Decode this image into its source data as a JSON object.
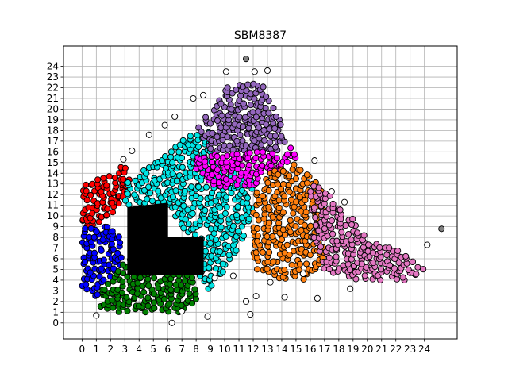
{
  "chart_data": {
    "type": "scatter",
    "title": "SBM8387",
    "xlabel": "",
    "ylabel": "",
    "xlim": [
      -1.3,
      26.3
    ],
    "ylim": [
      -1.5,
      25.9
    ],
    "xticks": [
      "0",
      "1",
      "2",
      "3",
      "4",
      "5",
      "6",
      "7",
      "8",
      "9",
      "10",
      "11",
      "12",
      "13",
      "14",
      "15",
      "16",
      "17",
      "18",
      "19",
      "20",
      "21",
      "22",
      "23",
      "24"
    ],
    "yticks": [
      "0",
      "1",
      "2",
      "3",
      "4",
      "5",
      "6",
      "7",
      "8",
      "9",
      "10",
      "11",
      "12",
      "13",
      "14",
      "15",
      "16",
      "17",
      "18",
      "19",
      "20",
      "21",
      "22",
      "23",
      "24"
    ],
    "grid": true,
    "marker_edge_color": "#000000",
    "series_colors": {
      "red": "#ff0000",
      "blue": "#0000ff",
      "green": "#008000",
      "black": "#000000",
      "cyan": "#00e5e5",
      "magenta": "#ff00ff",
      "purple": "#9467bd",
      "orange": "#ff7f0e",
      "pink": "#e377c2",
      "white": "#ffffff",
      "gray": "#808080"
    },
    "clusters": [
      {
        "color": "red",
        "polygon": [
          [
            0,
            9
          ],
          [
            0,
            13
          ],
          [
            1,
            13.5
          ],
          [
            2,
            14
          ],
          [
            3,
            15
          ],
          [
            3.5,
            14
          ],
          [
            3,
            12
          ],
          [
            2,
            10
          ],
          [
            1,
            9
          ]
        ],
        "density": 0.9
      },
      {
        "color": "blue",
        "polygon": [
          [
            0,
            3
          ],
          [
            0,
            9
          ],
          [
            2,
            9
          ],
          [
            3,
            8
          ],
          [
            3,
            6
          ],
          [
            2,
            4
          ],
          [
            1,
            2.5
          ]
        ],
        "density": 0.9
      },
      {
        "color": "green",
        "polygon": [
          [
            1,
            1
          ],
          [
            1,
            3
          ],
          [
            2,
            4
          ],
          [
            3,
            6
          ],
          [
            4,
            7
          ],
          [
            5,
            6
          ],
          [
            7,
            5
          ],
          [
            8,
            4
          ],
          [
            8,
            2
          ],
          [
            7,
            1
          ],
          [
            4,
            1
          ]
        ],
        "density": 0.9
      },
      {
        "color": "cyan",
        "polygon": [
          [
            3,
            11
          ],
          [
            3,
            13
          ],
          [
            5,
            15
          ],
          [
            6,
            16
          ],
          [
            7,
            17
          ],
          [
            8,
            18
          ],
          [
            9,
            18
          ],
          [
            9,
            16
          ],
          [
            10,
            14
          ],
          [
            12,
            14
          ],
          [
            12,
            10
          ],
          [
            11,
            7
          ],
          [
            10,
            5
          ],
          [
            9,
            3
          ],
          [
            8,
            4
          ],
          [
            8,
            7
          ],
          [
            7,
            9
          ],
          [
            6,
            11
          ],
          [
            4,
            11
          ]
        ],
        "density": 0.85
      },
      {
        "color": "purple",
        "polygon": [
          [
            8,
            18
          ],
          [
            9,
            20
          ],
          [
            10,
            22
          ],
          [
            12,
            22.5
          ],
          [
            13,
            22
          ],
          [
            13.5,
            20
          ],
          [
            14.5,
            17
          ],
          [
            14,
            16
          ],
          [
            12,
            16
          ],
          [
            10,
            16
          ],
          [
            9,
            16
          ]
        ],
        "density": 0.9
      },
      {
        "color": "magenta",
        "polygon": [
          [
            8,
            14
          ],
          [
            8,
            15.5
          ],
          [
            9,
            16
          ],
          [
            12,
            16
          ],
          [
            14,
            16
          ],
          [
            15,
            17
          ],
          [
            15,
            15
          ],
          [
            13,
            14
          ],
          [
            12,
            12.5
          ],
          [
            10,
            12.5
          ],
          [
            9,
            13
          ]
        ],
        "density": 0.9
      },
      {
        "color": "orange",
        "polygon": [
          [
            12,
            7
          ],
          [
            12,
            12
          ],
          [
            13,
            14
          ],
          [
            15,
            15
          ],
          [
            16,
            14
          ],
          [
            17,
            12
          ],
          [
            17,
            8
          ],
          [
            17,
            6
          ],
          [
            16,
            4
          ],
          [
            14,
            4
          ],
          [
            13,
            4.5
          ],
          [
            12,
            5
          ]
        ],
        "density": 0.8
      },
      {
        "color": "pink",
        "polygon": [
          [
            16,
            13
          ],
          [
            17,
            12.5
          ],
          [
            18,
            11
          ],
          [
            19,
            10
          ],
          [
            20,
            8
          ],
          [
            22,
            7
          ],
          [
            23,
            6
          ],
          [
            24,
            5
          ],
          [
            23,
            4
          ],
          [
            21,
            4
          ],
          [
            19,
            4
          ],
          [
            17,
            5
          ],
          [
            16,
            8
          ]
        ],
        "density": 0.85
      }
    ],
    "black_block": {
      "color": "black",
      "polygon": [
        [
          3.2,
          4.5
        ],
        [
          3.2,
          10.8
        ],
        [
          6,
          11.2
        ],
        [
          6,
          8
        ],
        [
          8.5,
          8
        ],
        [
          8.5,
          4.5
        ]
      ]
    },
    "outliers": [
      {
        "x": 11.5,
        "y": 24.7,
        "color": "gray"
      },
      {
        "x": 25.2,
        "y": 8.8,
        "color": "gray"
      },
      {
        "x": 1,
        "y": 0.7,
        "color": "white"
      },
      {
        "x": 6.3,
        "y": 0,
        "color": "white"
      },
      {
        "x": 7,
        "y": 1.1,
        "color": "white"
      },
      {
        "x": 8.8,
        "y": 0.6,
        "color": "white"
      },
      {
        "x": 11.8,
        "y": 0.8,
        "color": "white"
      },
      {
        "x": 11.5,
        "y": 2,
        "color": "white"
      },
      {
        "x": 12.2,
        "y": 2.5,
        "color": "white"
      },
      {
        "x": 14.2,
        "y": 2.4,
        "color": "white"
      },
      {
        "x": 16.5,
        "y": 2.3,
        "color": "white"
      },
      {
        "x": 18.8,
        "y": 3.2,
        "color": "white"
      },
      {
        "x": 24.2,
        "y": 7.3,
        "color": "white"
      },
      {
        "x": 13,
        "y": 23.6,
        "color": "white"
      },
      {
        "x": 12.1,
        "y": 23.5,
        "color": "white"
      },
      {
        "x": 10.1,
        "y": 23.5,
        "color": "white"
      },
      {
        "x": 8.5,
        "y": 21.3,
        "color": "white"
      },
      {
        "x": 7.8,
        "y": 21,
        "color": "white"
      },
      {
        "x": 6.5,
        "y": 19.3,
        "color": "white"
      },
      {
        "x": 5.8,
        "y": 18.5,
        "color": "white"
      },
      {
        "x": 4.7,
        "y": 17.6,
        "color": "white"
      },
      {
        "x": 3.5,
        "y": 16.1,
        "color": "white"
      },
      {
        "x": 2.9,
        "y": 15.3,
        "color": "white"
      },
      {
        "x": 16.3,
        "y": 15.2,
        "color": "white"
      },
      {
        "x": 17.5,
        "y": 12.3,
        "color": "white"
      },
      {
        "x": 18.4,
        "y": 11.3,
        "color": "white"
      },
      {
        "x": 9.3,
        "y": 4.2,
        "color": "white"
      },
      {
        "x": 10.6,
        "y": 4.4,
        "color": "white"
      },
      {
        "x": 13.2,
        "y": 3.8,
        "color": "white"
      },
      {
        "x": 15.5,
        "y": 4.6,
        "color": "white"
      }
    ]
  }
}
